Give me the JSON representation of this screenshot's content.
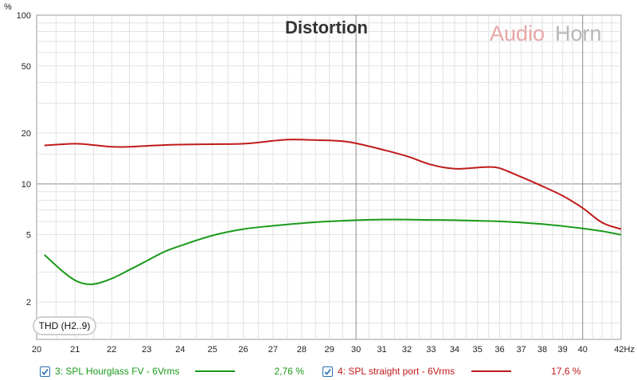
{
  "chart_data": {
    "type": "line",
    "title": "Distortion",
    "brand": {
      "part1": "Audio",
      "part2": "Horn"
    },
    "ylabel": "%",
    "xunit": "Hz",
    "yscale": "log",
    "ylim": [
      1.2,
      100
    ],
    "xlim": [
      20,
      42
    ],
    "yticks": [
      {
        "v": 100,
        "label": "100"
      },
      {
        "v": 50,
        "label": "50"
      },
      {
        "v": 20,
        "label": "20"
      },
      {
        "v": 10,
        "label": "10"
      },
      {
        "v": 5,
        "label": "5"
      },
      {
        "v": 2,
        "label": "2"
      }
    ],
    "xticks": [
      {
        "v": 20,
        "label": "20"
      },
      {
        "v": 21,
        "label": "21"
      },
      {
        "v": 22,
        "label": "22"
      },
      {
        "v": 23,
        "label": "23"
      },
      {
        "v": 24,
        "label": "24"
      },
      {
        "v": 25,
        "label": "25"
      },
      {
        "v": 26,
        "label": "26"
      },
      {
        "v": 27,
        "label": "27"
      },
      {
        "v": 28,
        "label": "28"
      },
      {
        "v": 29,
        "label": "29"
      },
      {
        "v": 30,
        "label": "30"
      },
      {
        "v": 31,
        "label": "31"
      },
      {
        "v": 32,
        "label": "32"
      },
      {
        "v": 33,
        "label": "33"
      },
      {
        "v": 34,
        "label": "34"
      },
      {
        "v": 35,
        "label": "35"
      },
      {
        "v": 36,
        "label": "36"
      },
      {
        "v": 37,
        "label": "37"
      },
      {
        "v": 38,
        "label": "38"
      },
      {
        "v": 39,
        "label": "39"
      },
      {
        "v": 40,
        "label": "40"
      },
      {
        "v": 42,
        "label": "42Hz"
      }
    ],
    "grid": true,
    "series": [
      {
        "name": "3: SPL Hourglass FV - 6Vrms",
        "color": "#1a9a1a",
        "checked": true,
        "value_label": "2,76 %",
        "x": [
          20.2,
          20.7,
          21.1,
          21.5,
          22,
          22.5,
          23,
          23.5,
          24,
          25,
          26,
          27,
          28,
          29,
          30,
          31,
          32,
          33,
          34,
          35,
          36,
          37,
          38,
          39,
          40,
          41,
          42
        ],
        "y": [
          3.8,
          3.0,
          2.62,
          2.55,
          2.75,
          3.1,
          3.5,
          3.95,
          4.3,
          4.95,
          5.4,
          5.65,
          5.85,
          6.0,
          6.1,
          6.15,
          6.15,
          6.12,
          6.1,
          6.05,
          6.0,
          5.9,
          5.78,
          5.63,
          5.45,
          5.25,
          5.0
        ]
      },
      {
        "name": "4: SPL straight port - 6Vrms",
        "color": "#c01a1a",
        "checked": true,
        "value_label": "17,6 %",
        "x": [
          20.2,
          21,
          21.5,
          22,
          22.5,
          23,
          23.5,
          24,
          25,
          26,
          27,
          27.5,
          28,
          29,
          29.5,
          30,
          31,
          32,
          33,
          34,
          35,
          35.5,
          36,
          37,
          38,
          39,
          40,
          41,
          42
        ],
        "y": [
          16.9,
          17.3,
          17.0,
          16.6,
          16.6,
          16.8,
          17.0,
          17.1,
          17.2,
          17.3,
          18.0,
          18.3,
          18.3,
          18.1,
          17.9,
          17.4,
          16.0,
          14.6,
          13.0,
          12.3,
          12.5,
          12.6,
          12.4,
          11.0,
          9.7,
          8.5,
          7.2,
          5.9,
          5.4
        ]
      }
    ]
  },
  "badge": {
    "label": "THD (H2..9)"
  }
}
